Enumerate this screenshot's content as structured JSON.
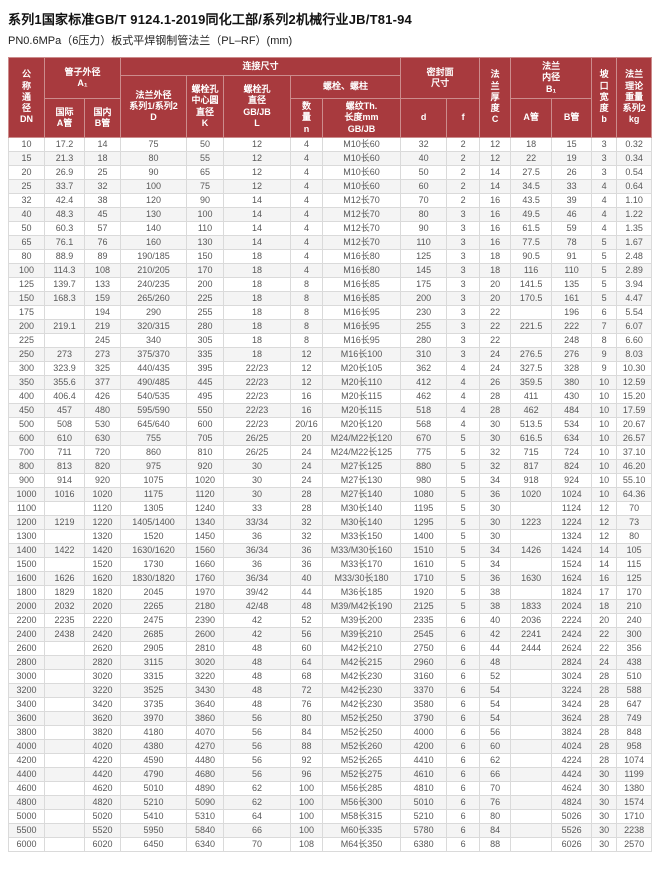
{
  "page": {
    "title": "系列1国家标准GB/T 9124.1-2019同化工部/系列2机械行业JB/T81-94",
    "subtitle": "PN0.6MPa（6压力）板式平焊钢制管法兰（PL–RF）(mm)"
  },
  "colors": {
    "header_bg": "#a83a3e",
    "header_border": "#cc8c8c",
    "body_border": "#dadada",
    "alt_row_bg": "#f4f4f4",
    "body_text": "#585858"
  },
  "table": {
    "headers": {
      "dn": "公\n称\n通\n径\nDN",
      "pipe_od": "管子外径\nA₁",
      "intl_a": "国际\nA管",
      "dom_b": "国内\nB管",
      "connection": "连接尺寸",
      "flange_od": "法兰外径\n系列1/系列2\nD",
      "bolt_circle": "螺栓孔\n中心圆\n直径\nK",
      "bolt_hole": "螺栓孔\n直径\nGB/JB\nL",
      "bolts": "螺栓、螺柱",
      "qty": "数\n量\nn",
      "thread": "螺纹Th.\n长度mm\nGB/JB",
      "sealing": "密封面\n尺寸",
      "d": "d",
      "f": "f",
      "thickness": "法\n兰\n厚\n度\nC",
      "bore": "法兰\n内径\nB₁",
      "bore_a": "A管",
      "bore_b": "B管",
      "groove": "坡\n口\n宽\n度\nb",
      "weight": "法兰\n理论\n重量\n系列2\nkg"
    },
    "rows": [
      [
        "10",
        "17.2",
        "14",
        "75",
        "50",
        "12",
        "4",
        "M10长60",
        "32",
        "2",
        "12",
        "18",
        "15",
        "3",
        "0.32"
      ],
      [
        "15",
        "21.3",
        "18",
        "80",
        "55",
        "12",
        "4",
        "M10长60",
        "40",
        "2",
        "12",
        "22",
        "19",
        "3",
        "0.34"
      ],
      [
        "20",
        "26.9",
        "25",
        "90",
        "65",
        "12",
        "4",
        "M10长60",
        "50",
        "2",
        "14",
        "27.5",
        "26",
        "3",
        "0.54"
      ],
      [
        "25",
        "33.7",
        "32",
        "100",
        "75",
        "12",
        "4",
        "M10长60",
        "60",
        "2",
        "14",
        "34.5",
        "33",
        "4",
        "0.64"
      ],
      [
        "32",
        "42.4",
        "38",
        "120",
        "90",
        "14",
        "4",
        "M12长70",
        "70",
        "2",
        "16",
        "43.5",
        "39",
        "4",
        "1.10"
      ],
      [
        "40",
        "48.3",
        "45",
        "130",
        "100",
        "14",
        "4",
        "M12长70",
        "80",
        "3",
        "16",
        "49.5",
        "46",
        "4",
        "1.22"
      ],
      [
        "50",
        "60.3",
        "57",
        "140",
        "110",
        "14",
        "4",
        "M12长70",
        "90",
        "3",
        "16",
        "61.5",
        "59",
        "4",
        "1.35"
      ],
      [
        "65",
        "76.1",
        "76",
        "160",
        "130",
        "14",
        "4",
        "M12长70",
        "110",
        "3",
        "16",
        "77.5",
        "78",
        "5",
        "1.67"
      ],
      [
        "80",
        "88.9",
        "89",
        "190/185",
        "150",
        "18",
        "4",
        "M16长80",
        "125",
        "3",
        "18",
        "90.5",
        "91",
        "5",
        "2.48"
      ],
      [
        "100",
        "114.3",
        "108",
        "210/205",
        "170",
        "18",
        "4",
        "M16长80",
        "145",
        "3",
        "18",
        "116",
        "110",
        "5",
        "2.89"
      ],
      [
        "125",
        "139.7",
        "133",
        "240/235",
        "200",
        "18",
        "8",
        "M16长85",
        "175",
        "3",
        "20",
        "141.5",
        "135",
        "5",
        "3.94"
      ],
      [
        "150",
        "168.3",
        "159",
        "265/260",
        "225",
        "18",
        "8",
        "M16长85",
        "200",
        "3",
        "20",
        "170.5",
        "161",
        "5",
        "4.47"
      ],
      [
        "175",
        "",
        "194",
        "290",
        "255",
        "18",
        "8",
        "M16长95",
        "230",
        "3",
        "22",
        "",
        "196",
        "6",
        "5.54"
      ],
      [
        "200",
        "219.1",
        "219",
        "320/315",
        "280",
        "18",
        "8",
        "M16长95",
        "255",
        "3",
        "22",
        "221.5",
        "222",
        "7",
        "6.07"
      ],
      [
        "225",
        "",
        "245",
        "340",
        "305",
        "18",
        "8",
        "M16长95",
        "280",
        "3",
        "22",
        "",
        "248",
        "8",
        "6.60"
      ],
      [
        "250",
        "273",
        "273",
        "375/370",
        "335",
        "18",
        "12",
        "M16长100",
        "310",
        "3",
        "24",
        "276.5",
        "276",
        "9",
        "8.03"
      ],
      [
        "300",
        "323.9",
        "325",
        "440/435",
        "395",
        "22/23",
        "12",
        "M20长105",
        "362",
        "4",
        "24",
        "327.5",
        "328",
        "9",
        "10.30"
      ],
      [
        "350",
        "355.6",
        "377",
        "490/485",
        "445",
        "22/23",
        "12",
        "M20长110",
        "412",
        "4",
        "26",
        "359.5",
        "380",
        "10",
        "12.59"
      ],
      [
        "400",
        "406.4",
        "426",
        "540/535",
        "495",
        "22/23",
        "16",
        "M20长115",
        "462",
        "4",
        "28",
        "411",
        "430",
        "10",
        "15.20"
      ],
      [
        "450",
        "457",
        "480",
        "595/590",
        "550",
        "22/23",
        "16",
        "M20长115",
        "518",
        "4",
        "28",
        "462",
        "484",
        "10",
        "17.59"
      ],
      [
        "500",
        "508",
        "530",
        "645/640",
        "600",
        "22/23",
        "20/16",
        "M20长120",
        "568",
        "4",
        "30",
        "513.5",
        "534",
        "10",
        "20.67"
      ],
      [
        "600",
        "610",
        "630",
        "755",
        "705",
        "26/25",
        "20",
        "M24/M22长120",
        "670",
        "5",
        "30",
        "616.5",
        "634",
        "10",
        "26.57"
      ],
      [
        "700",
        "711",
        "720",
        "860",
        "810",
        "26/25",
        "24",
        "M24/M22长125",
        "775",
        "5",
        "32",
        "715",
        "724",
        "10",
        "37.10"
      ],
      [
        "800",
        "813",
        "820",
        "975",
        "920",
        "30",
        "24",
        "M27长125",
        "880",
        "5",
        "32",
        "817",
        "824",
        "10",
        "46.20"
      ],
      [
        "900",
        "914",
        "920",
        "1075",
        "1020",
        "30",
        "24",
        "M27长130",
        "980",
        "5",
        "34",
        "918",
        "924",
        "10",
        "55.10"
      ],
      [
        "1000",
        "1016",
        "1020",
        "1175",
        "1120",
        "30",
        "28",
        "M27长140",
        "1080",
        "5",
        "36",
        "1020",
        "1024",
        "10",
        "64.36"
      ],
      [
        "1100",
        "",
        "1120",
        "1305",
        "1240",
        "33",
        "28",
        "M30长140",
        "1195",
        "5",
        "30",
        "",
        "1124",
        "12",
        "70"
      ],
      [
        "1200",
        "1219",
        "1220",
        "1405/1400",
        "1340",
        "33/34",
        "32",
        "M30长140",
        "1295",
        "5",
        "30",
        "1223",
        "1224",
        "12",
        "73"
      ],
      [
        "1300",
        "",
        "1320",
        "1520",
        "1450",
        "36",
        "32",
        "M33长150",
        "1400",
        "5",
        "30",
        "",
        "1324",
        "12",
        "80"
      ],
      [
        "1400",
        "1422",
        "1420",
        "1630/1620",
        "1560",
        "36/34",
        "36",
        "M33/M30长160",
        "1510",
        "5",
        "34",
        "1426",
        "1424",
        "14",
        "105"
      ],
      [
        "1500",
        "",
        "1520",
        "1730",
        "1660",
        "36",
        "36",
        "M33长170",
        "1610",
        "5",
        "34",
        "",
        "1524",
        "14",
        "115"
      ],
      [
        "1600",
        "1626",
        "1620",
        "1830/1820",
        "1760",
        "36/34",
        "40",
        "M33/30长180",
        "1710",
        "5",
        "36",
        "1630",
        "1624",
        "16",
        "125"
      ],
      [
        "1800",
        "1829",
        "1820",
        "2045",
        "1970",
        "39/42",
        "44",
        "M36长185",
        "1920",
        "5",
        "38",
        "",
        "1824",
        "17",
        "170"
      ],
      [
        "2000",
        "2032",
        "2020",
        "2265",
        "2180",
        "42/48",
        "48",
        "M39/M42长190",
        "2125",
        "5",
        "38",
        "1833",
        "2024",
        "18",
        "210"
      ],
      [
        "2200",
        "2235",
        "2220",
        "2475",
        "2390",
        "42",
        "52",
        "M39长200",
        "2335",
        "6",
        "40",
        "2036",
        "2224",
        "20",
        "240"
      ],
      [
        "2400",
        "2438",
        "2420",
        "2685",
        "2600",
        "42",
        "56",
        "M39长210",
        "2545",
        "6",
        "42",
        "2241",
        "2424",
        "22",
        "300"
      ],
      [
        "2600",
        "",
        "2620",
        "2905",
        "2810",
        "48",
        "60",
        "M42长210",
        "2750",
        "6",
        "44",
        "2444",
        "2624",
        "22",
        "356"
      ],
      [
        "2800",
        "",
        "2820",
        "3115",
        "3020",
        "48",
        "64",
        "M42长215",
        "2960",
        "6",
        "48",
        "",
        "2824",
        "24",
        "438"
      ],
      [
        "3000",
        "",
        "3020",
        "3315",
        "3220",
        "48",
        "68",
        "M42长230",
        "3160",
        "6",
        "52",
        "",
        "3024",
        "28",
        "510"
      ],
      [
        "3200",
        "",
        "3220",
        "3525",
        "3430",
        "48",
        "72",
        "M42长230",
        "3370",
        "6",
        "54",
        "",
        "3224",
        "28",
        "588"
      ],
      [
        "3400",
        "",
        "3420",
        "3735",
        "3640",
        "48",
        "76",
        "M42长230",
        "3580",
        "6",
        "54",
        "",
        "3424",
        "28",
        "647"
      ],
      [
        "3600",
        "",
        "3620",
        "3970",
        "3860",
        "56",
        "80",
        "M52长250",
        "3790",
        "6",
        "54",
        "",
        "3624",
        "28",
        "749"
      ],
      [
        "3800",
        "",
        "3820",
        "4180",
        "4070",
        "56",
        "84",
        "M52长250",
        "4000",
        "6",
        "56",
        "",
        "3824",
        "28",
        "848"
      ],
      [
        "4000",
        "",
        "4020",
        "4380",
        "4270",
        "56",
        "88",
        "M52长260",
        "4200",
        "6",
        "60",
        "",
        "4024",
        "28",
        "958"
      ],
      [
        "4200",
        "",
        "4220",
        "4590",
        "4480",
        "56",
        "92",
        "M52长265",
        "4410",
        "6",
        "62",
        "",
        "4224",
        "28",
        "1074"
      ],
      [
        "4400",
        "",
        "4420",
        "4790",
        "4680",
        "56",
        "96",
        "M52长275",
        "4610",
        "6",
        "66",
        "",
        "4424",
        "30",
        "1199"
      ],
      [
        "4600",
        "",
        "4620",
        "5010",
        "4890",
        "62",
        "100",
        "M56长285",
        "4810",
        "6",
        "70",
        "",
        "4624",
        "30",
        "1380"
      ],
      [
        "4800",
        "",
        "4820",
        "5210",
        "5090",
        "62",
        "100",
        "M56长300",
        "5010",
        "6",
        "76",
        "",
        "4824",
        "30",
        "1574"
      ],
      [
        "5000",
        "",
        "5020",
        "5410",
        "5310",
        "64",
        "100",
        "M58长315",
        "5210",
        "6",
        "80",
        "",
        "5026",
        "30",
        "1710"
      ],
      [
        "5500",
        "",
        "5520",
        "5950",
        "5840",
        "66",
        "100",
        "M60长335",
        "5780",
        "6",
        "84",
        "",
        "5526",
        "30",
        "2238"
      ],
      [
        "6000",
        "",
        "6020",
        "6450",
        "6340",
        "70",
        "108",
        "M64长350",
        "6380",
        "6",
        "88",
        "",
        "6026",
        "30",
        "2570"
      ]
    ]
  }
}
